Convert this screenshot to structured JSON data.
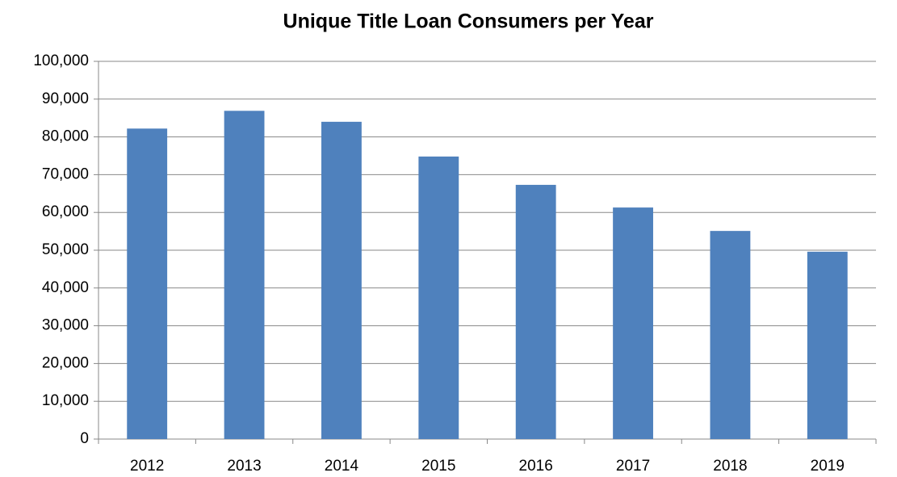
{
  "chart_data": {
    "type": "bar",
    "title": "Unique Title Loan Consumers per Year",
    "categories": [
      "2012",
      "2013",
      "2014",
      "2015",
      "2016",
      "2017",
      "2018",
      "2019"
    ],
    "values": [
      82200,
      86900,
      84000,
      74800,
      67300,
      61300,
      55100,
      49600
    ],
    "color": "#4f81bd",
    "ylim": [
      0,
      100000
    ],
    "yticks": [
      0,
      {
        "value": 10000,
        "label": "10,000"
      },
      {
        "value": 20000,
        "label": "20,000"
      },
      {
        "value": 30000,
        "label": "30,000"
      },
      {
        "value": 40000,
        "label": "40,000"
      },
      {
        "value": 50000,
        "label": "50,000"
      },
      {
        "value": 60000,
        "label": "60,000"
      },
      {
        "value": 70000,
        "label": "70,000"
      },
      {
        "value": 80000,
        "label": "80,000"
      },
      {
        "value": 90000,
        "label": "90,000"
      },
      {
        "value": 100000,
        "label": "100,000"
      }
    ],
    "grid": true
  }
}
